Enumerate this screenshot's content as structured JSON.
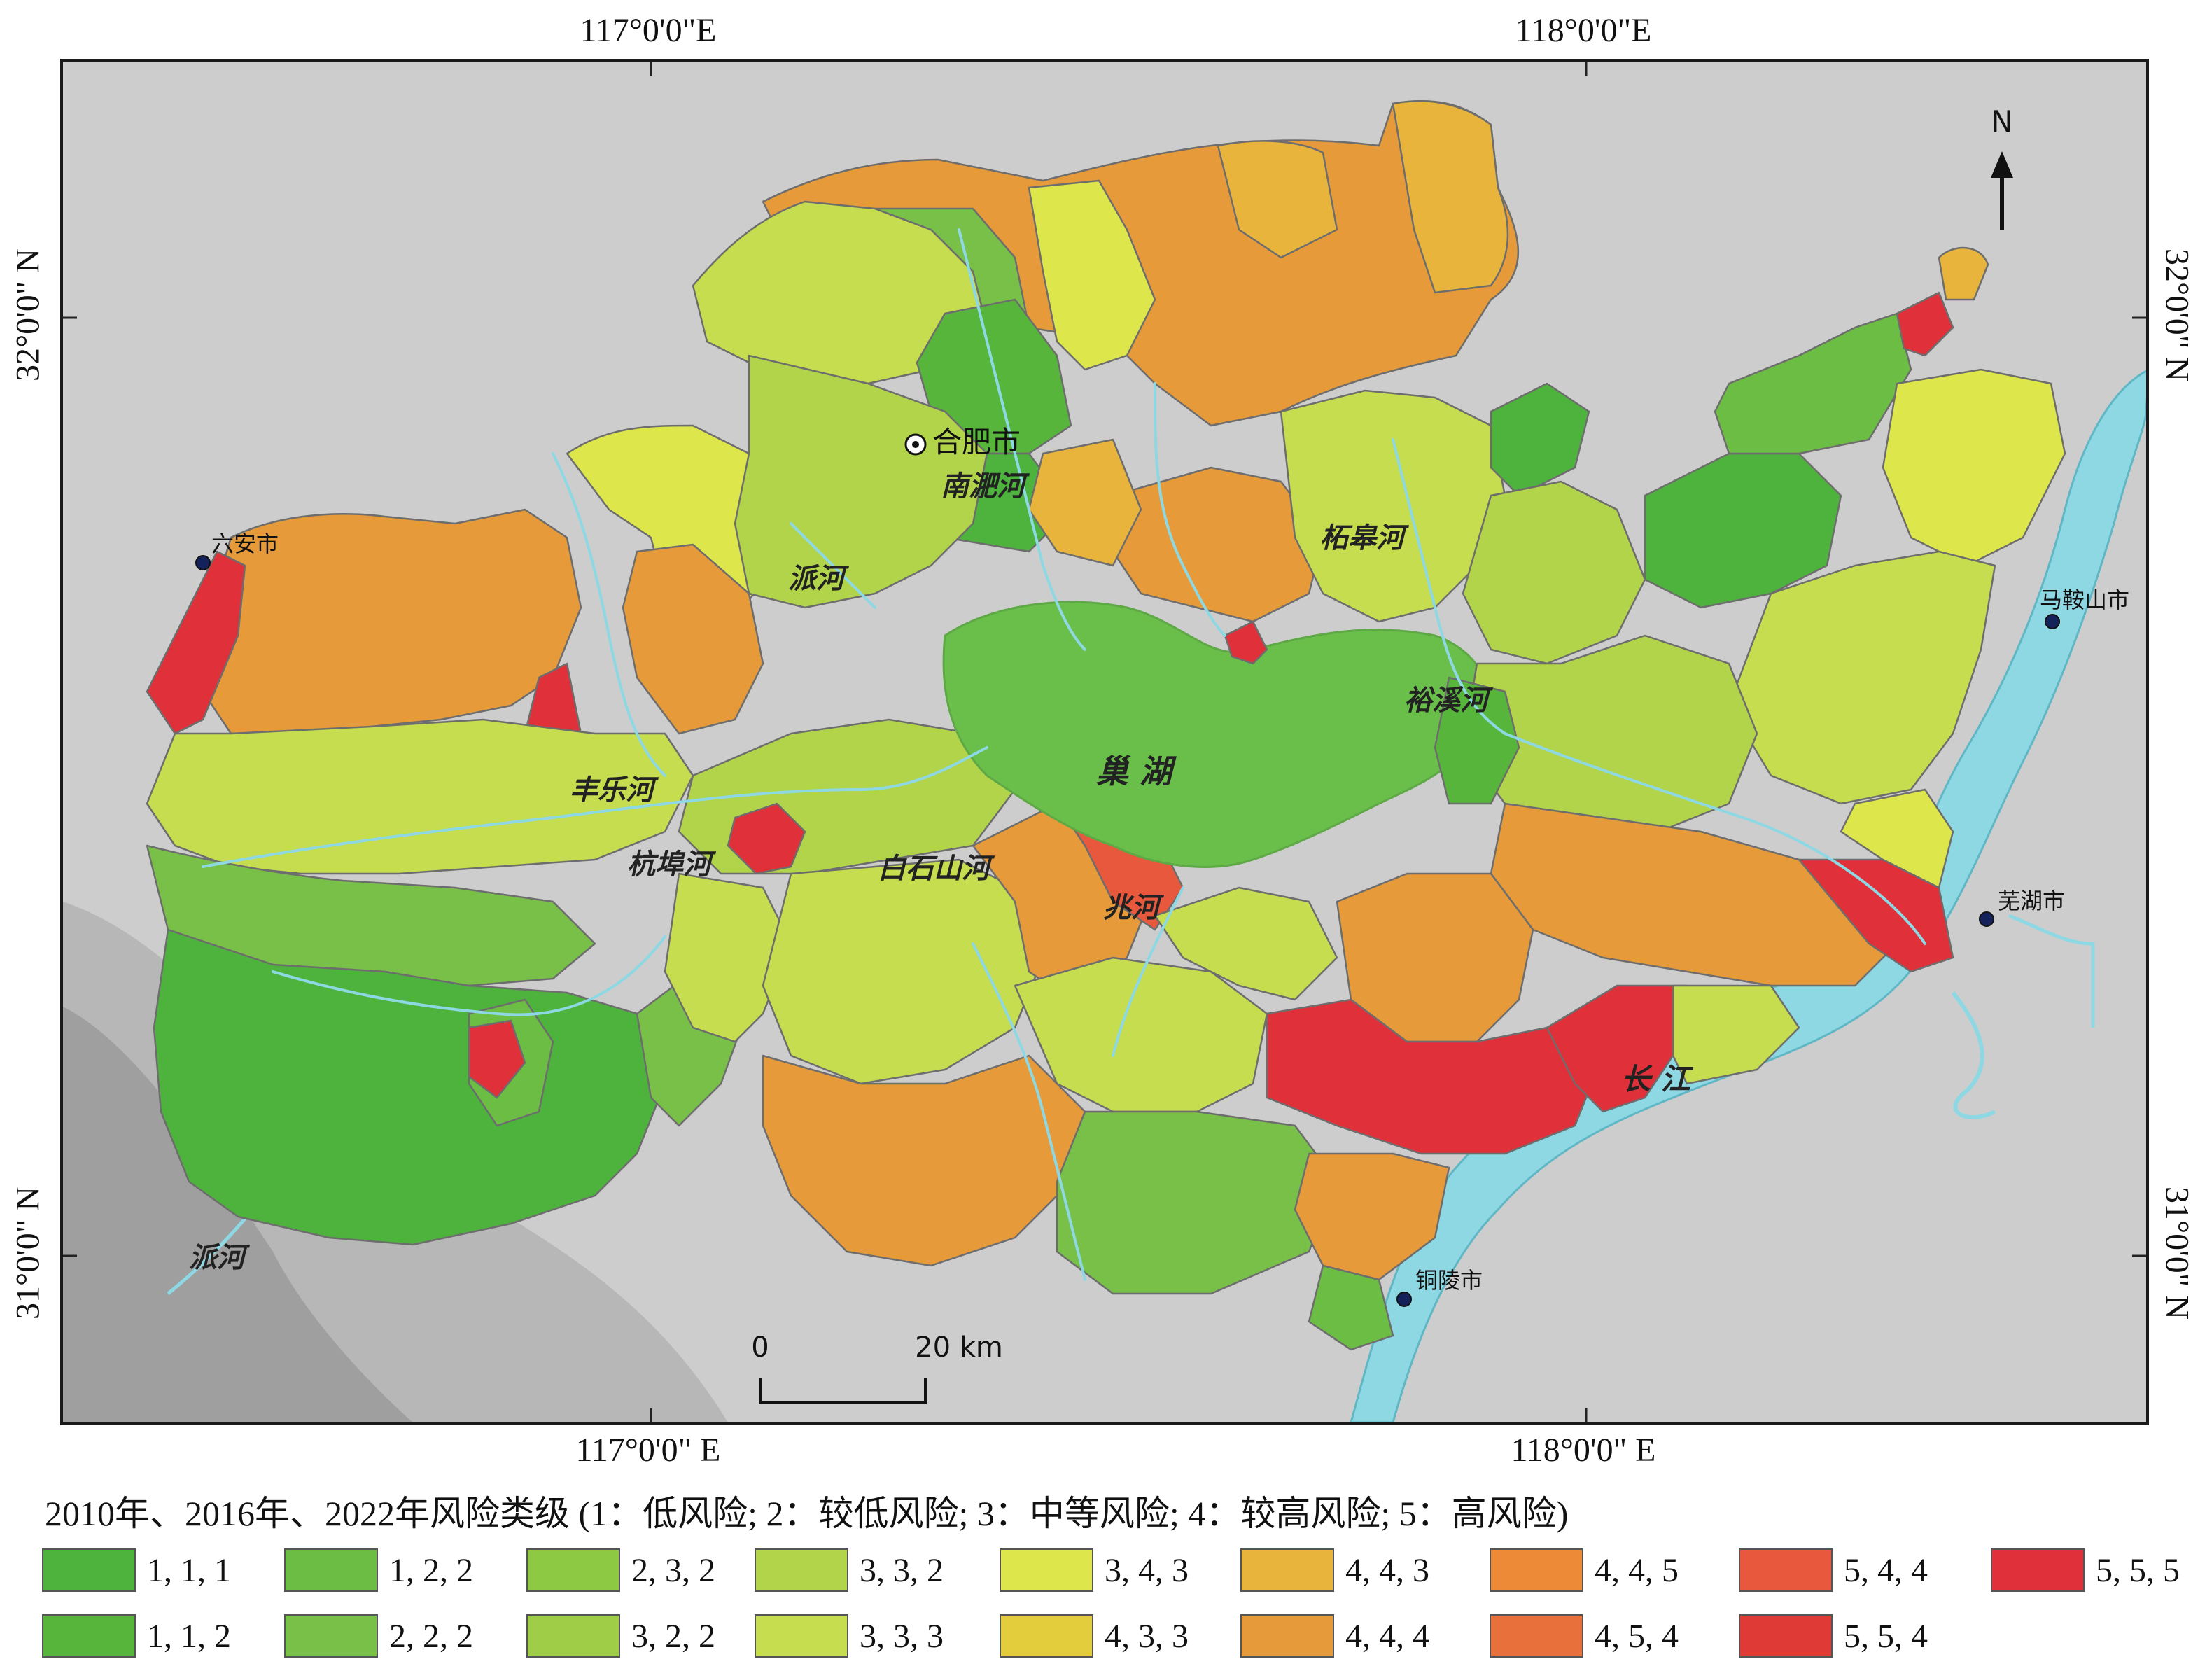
{
  "coords": {
    "top": [
      "117°0'0\"E",
      "118°0'0\"E"
    ],
    "bottom": [
      "117°0'0\" E",
      "118°0'0\" E"
    ],
    "left": [
      "32°0'0\" N",
      "31°0'0\" N"
    ],
    "right": [
      "32°0'0\" N",
      "31°0'0\" N"
    ]
  },
  "north_label": "N",
  "cities": [
    {
      "name": "合肥市",
      "kind": "capital"
    },
    {
      "name": "六安市",
      "kind": "city"
    },
    {
      "name": "马鞍山市",
      "kind": "city"
    },
    {
      "name": "芜湖市",
      "kind": "city"
    },
    {
      "name": "铜陵市",
      "kind": "city"
    }
  ],
  "water_labels": [
    "南淝河",
    "派河",
    "柘皋河",
    "裕溪河",
    "巢 湖",
    "丰乐河",
    "杭埠河",
    "白石山河",
    "兆河",
    "长 江",
    "派河"
  ],
  "scale_bar": {
    "start": "0",
    "end": "20 km"
  },
  "legend": {
    "title": "2010年、2016年、2022年风险类级 (1：低风险; 2：较低风险; 3：中等风险; 4：较高风险; 5：高风险)",
    "items": [
      {
        "label": "1, 1, 1",
        "color": "#4db33d"
      },
      {
        "label": "1, 2, 2",
        "color": "#6cbd43"
      },
      {
        "label": "2, 3, 2",
        "color": "#8ec944"
      },
      {
        "label": "3, 3, 2",
        "color": "#b2d44b"
      },
      {
        "label": "3, 4, 3",
        "color": "#dde64a"
      },
      {
        "label": "4, 4, 3",
        "color": "#e8b43c"
      },
      {
        "label": "4, 4, 5",
        "color": "#ec8a38"
      },
      {
        "label": "5, 4, 4",
        "color": "#e7583d"
      },
      {
        "label": "5, 5, 5",
        "color": "#e0303a"
      },
      {
        "label": "1, 1, 2",
        "color": "#57b53c"
      },
      {
        "label": "2, 2, 2",
        "color": "#78c048"
      },
      {
        "label": "3, 2, 2",
        "color": "#9fcd47"
      },
      {
        "label": "3, 3, 3",
        "color": "#c5dd4e"
      },
      {
        "label": "4, 3, 3",
        "color": "#e4cd3d"
      },
      {
        "label": "4, 4, 4",
        "color": "#e69a3a"
      },
      {
        "label": "4, 5, 4",
        "color": "#e8703a"
      },
      {
        "label": "5, 5, 4",
        "color": "#df3a36"
      }
    ]
  },
  "colors": {
    "lake": "#6abf4b",
    "river": "#8ed8e4",
    "background": "#c9c9c9",
    "boundary": "#6d6d6d"
  }
}
